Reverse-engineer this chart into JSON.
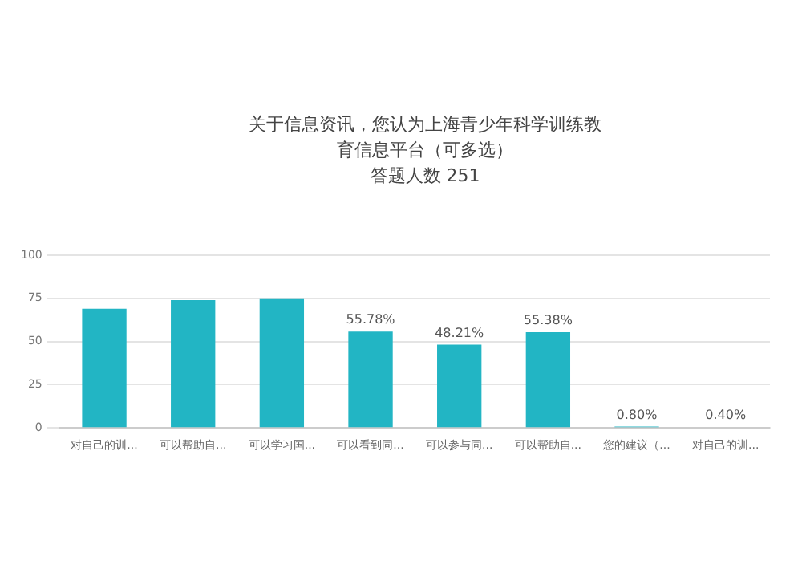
{
  "chart_data": {
    "type": "bar",
    "title": "关于信息资讯，您认为上海青少年科学训练教育信息平台（可多选）",
    "subtitle": "答题人数 251",
    "categories": [
      "对自己的训...",
      "可以帮助自...",
      "可以学习国...",
      "可以看到同...",
      "可以参与同...",
      "可以帮助自...",
      "您的建议（...",
      "对自己的训..."
    ],
    "values": [
      69,
      74,
      75,
      55.78,
      48.21,
      55.38,
      0.8,
      0.4
    ],
    "value_labels": [
      null,
      null,
      null,
      "55.78%",
      "48.21%",
      "55.38%",
      "0.80%",
      "0.40%"
    ],
    "color": "#22b5c4",
    "ylim": [
      0,
      100
    ],
    "yticks": [
      0,
      25,
      50,
      75,
      100
    ],
    "grid": "y"
  }
}
